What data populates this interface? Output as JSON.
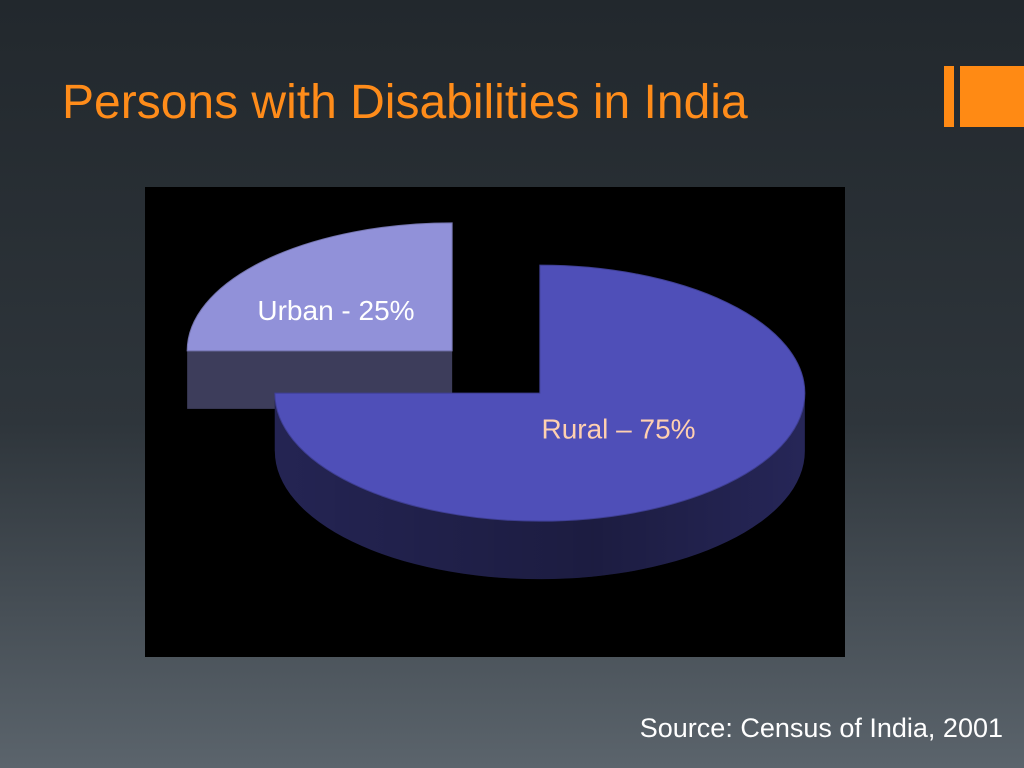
{
  "chart_data": {
    "type": "pie",
    "title": "Persons with Disabilities in India",
    "values": [
      25,
      75
    ],
    "value_labels": [
      "Urban - 25%",
      "Rural – 75%"
    ],
    "colors": [
      "#9191d9",
      "#4f4fb8"
    ],
    "label_colors": [
      "#ffffff",
      "#ffd0b0"
    ],
    "source": "Source: Census of India, 2001"
  }
}
